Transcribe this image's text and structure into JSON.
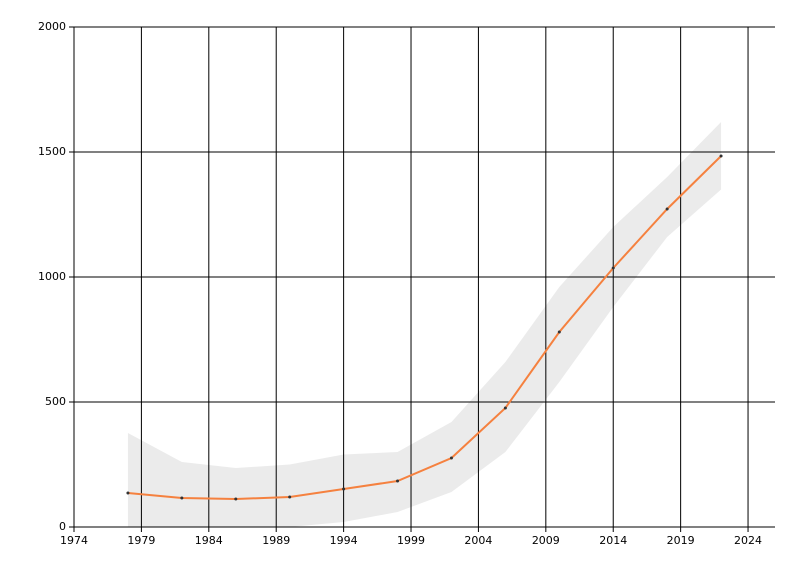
{
  "chart_data": {
    "type": "line",
    "x": [
      1978,
      1982,
      1986,
      1990,
      1994,
      1998,
      2002,
      2006,
      2010,
      2014,
      2018,
      2022
    ],
    "values": [
      136,
      116,
      112,
      120,
      152,
      184,
      276,
      476,
      780,
      1036,
      1272,
      1484
    ],
    "upper": [
      376,
      260,
      236,
      250,
      290,
      300,
      420,
      660,
      960,
      1200,
      1400,
      1620
    ],
    "lower": [
      0,
      0,
      0,
      0,
      20,
      60,
      140,
      300,
      580,
      880,
      1160,
      1350
    ],
    "color": "#f5813f",
    "band_color": "#ebebeb",
    "marker_color": "#333333",
    "xlim": [
      1974,
      2026
    ],
    "xticks": [
      1974,
      1979,
      1984,
      1989,
      1994,
      1999,
      2004,
      2009,
      2014,
      2019,
      2024
    ],
    "ylim": [
      0,
      2000
    ],
    "yticks": [
      0,
      500,
      1000,
      1500,
      2000
    ],
    "grid": true
  }
}
